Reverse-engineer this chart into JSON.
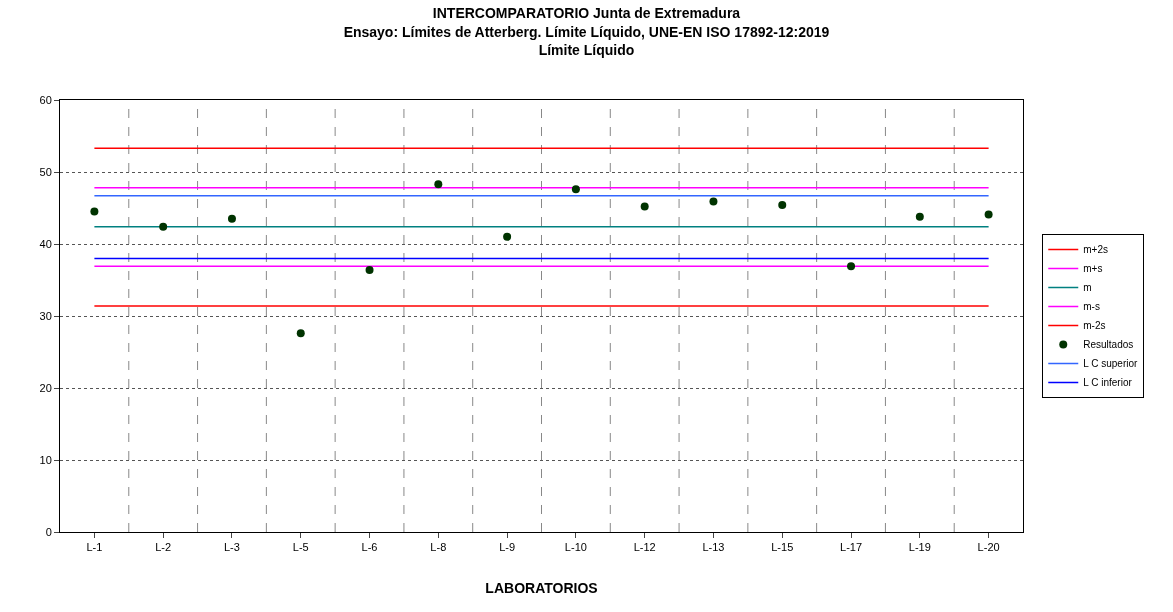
{
  "chart_data": {
    "type": "line",
    "title": "INTERCOMPARATORIO Junta de Extremadura\nEnsayo: Límites de Atterberg. Límite Líquido, UNE-EN ISO 17892-12:2019\nLímite Líquido",
    "xlabel": "LABORATORIOS",
    "categories": [
      "L-1",
      "L-2",
      "L-3",
      "L-5",
      "L-6",
      "L-8",
      "L-9",
      "L-10",
      "L-12",
      "L-13",
      "L-15",
      "L-17",
      "L-19",
      "L-20"
    ],
    "series": [
      {
        "name": "m+2s",
        "color": "#ff0000",
        "values": [
          53.3,
          53.3,
          53.3,
          53.3,
          53.3,
          53.3,
          53.3,
          53.3,
          53.3,
          53.3,
          53.3,
          53.3,
          53.3,
          53.3
        ]
      },
      {
        "name": "m+s",
        "color": "#ff00ff",
        "values": [
          47.8,
          47.8,
          47.8,
          47.8,
          47.8,
          47.8,
          47.8,
          47.8,
          47.8,
          47.8,
          47.8,
          47.8,
          47.8,
          47.8
        ]
      },
      {
        "name": "m",
        "color": "#008080",
        "values": [
          42.4,
          42.4,
          42.4,
          42.4,
          42.4,
          42.4,
          42.4,
          42.4,
          42.4,
          42.4,
          42.4,
          42.4,
          42.4,
          42.4
        ]
      },
      {
        "name": "m-s",
        "color": "#ff00ff",
        "values": [
          36.9,
          36.9,
          36.9,
          36.9,
          36.9,
          36.9,
          36.9,
          36.9,
          36.9,
          36.9,
          36.9,
          36.9,
          36.9,
          36.9
        ]
      },
      {
        "name": "m-2s",
        "color": "#ff0000",
        "values": [
          31.4,
          31.4,
          31.4,
          31.4,
          31.4,
          31.4,
          31.4,
          31.4,
          31.4,
          31.4,
          31.4,
          31.4,
          31.4,
          31.4
        ]
      },
      {
        "name": "Resultados",
        "type": "scatter",
        "marker": "circle",
        "color": "#003300",
        "values": [
          44.5,
          42.4,
          43.5,
          27.6,
          36.4,
          48.3,
          41.0,
          47.6,
          45.2,
          45.9,
          45.4,
          36.9,
          43.8,
          44.1
        ]
      },
      {
        "name": "L C superior",
        "color": "#3366ff",
        "values": [
          46.7,
          46.7,
          46.7,
          46.7,
          46.7,
          46.7,
          46.7,
          46.7,
          46.7,
          46.7,
          46.7,
          46.7,
          46.7,
          46.7
        ]
      },
      {
        "name": "L C inferior",
        "color": "#0000ff",
        "values": [
          38.0,
          38.0,
          38.0,
          38.0,
          38.0,
          38.0,
          38.0,
          38.0,
          38.0,
          38.0,
          38.0,
          38.0,
          38.0,
          38.0
        ]
      }
    ],
    "ylim": [
      0,
      60
    ],
    "yticks": [
      0,
      10,
      20,
      30,
      40,
      50,
      60
    ],
    "grid": true,
    "legend": "right"
  }
}
